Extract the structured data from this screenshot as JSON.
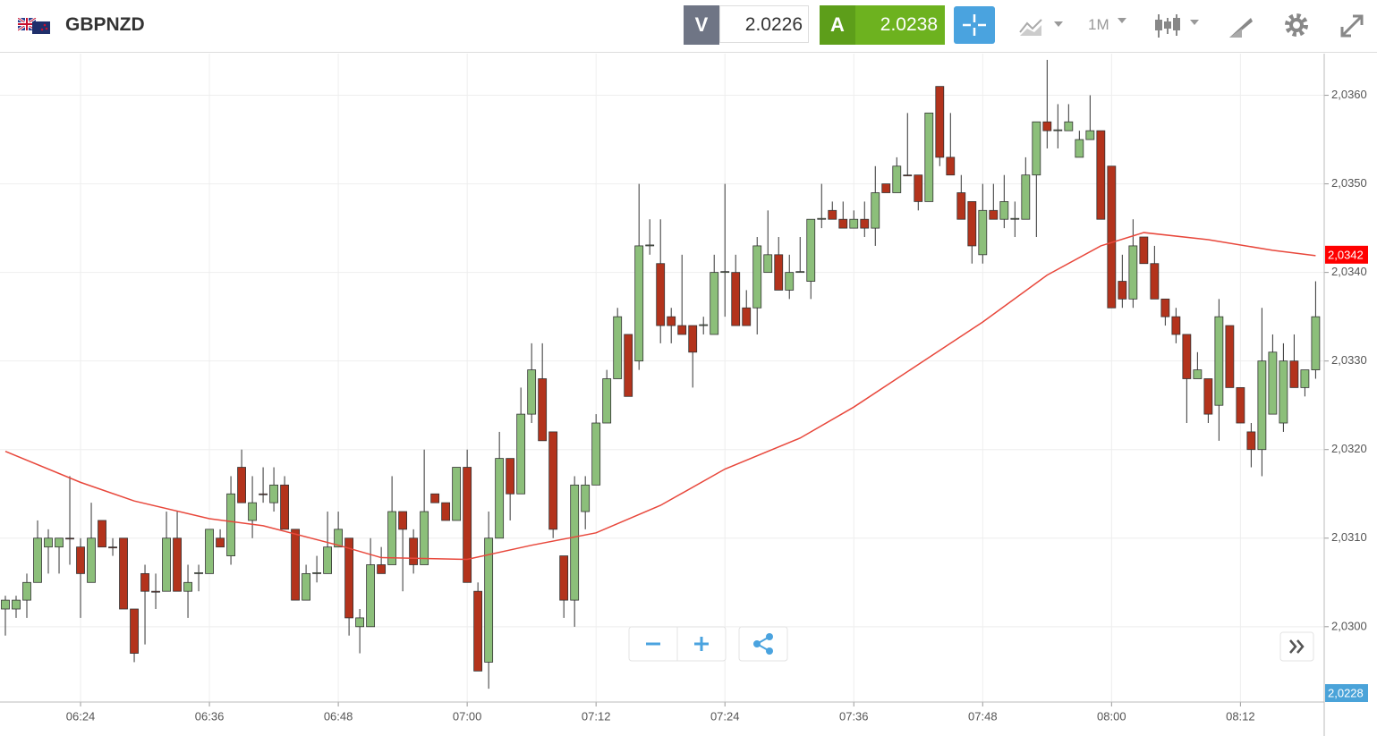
{
  "header": {
    "symbol": "GBPNZD",
    "bid_label": "V",
    "bid": "2.0226",
    "ask_label": "A",
    "ask": "2.0238",
    "timeframe": "1M"
  },
  "chart_data": {
    "type": "candlestick",
    "x": [
      377,
      378,
      379,
      380,
      381,
      382,
      383,
      384,
      385,
      386,
      387,
      388,
      389,
      390,
      391,
      392,
      393,
      394,
      395,
      396,
      397,
      398,
      399,
      400,
      401,
      402,
      403,
      404,
      405,
      406,
      407,
      408,
      409,
      410,
      411,
      412,
      413,
      414,
      415,
      416,
      417,
      418,
      419,
      420,
      421,
      422,
      423,
      424,
      425,
      426,
      427,
      428,
      429,
      430,
      431,
      432,
      433,
      434,
      435,
      436,
      437,
      438,
      439,
      440,
      441,
      442,
      443,
      444,
      445,
      446,
      447,
      448,
      449,
      450,
      451,
      452,
      453,
      454,
      455,
      456,
      457,
      458,
      459,
      460,
      461,
      462,
      463,
      464,
      465,
      466,
      467,
      468,
      469,
      470,
      471,
      472,
      473,
      474,
      475,
      476,
      477,
      478,
      479,
      480,
      481,
      482,
      483,
      484,
      485,
      486,
      487,
      488,
      489,
      490,
      491,
      492,
      493,
      494,
      495,
      496,
      497,
      498,
      499
    ],
    "open": [
      2.0302,
      2.0302,
      2.0303,
      2.0305,
      2.0309,
      2.0309,
      2.031,
      2.0309,
      2.0305,
      2.0312,
      2.0309,
      2.031,
      2.0302,
      2.0306,
      2.0304,
      2.0304,
      2.031,
      2.0304,
      2.0306,
      2.0306,
      2.031,
      2.0308,
      2.0318,
      2.0312,
      2.0315,
      2.0314,
      2.0316,
      2.0311,
      2.0303,
      2.0306,
      2.0306,
      2.0309,
      2.031,
      2.03,
      2.03,
      2.0307,
      2.0307,
      2.0313,
      2.031,
      2.0307,
      2.0315,
      2.0314,
      2.0312,
      2.0318,
      2.0304,
      2.0296,
      2.031,
      2.0319,
      2.0315,
      2.0324,
      2.0328,
      2.0322,
      2.0308,
      2.0303,
      2.0313,
      2.0316,
      2.0323,
      2.0328,
      2.0333,
      2.033,
      2.0343,
      2.0341,
      2.0335,
      2.0334,
      2.0334,
      2.0334,
      2.0333,
      2.034,
      2.034,
      2.0336,
      2.0336,
      2.034,
      2.0342,
      2.0338,
      2.034,
      2.0339,
      2.0346,
      2.0347,
      2.0346,
      2.0345,
      2.0346,
      2.0345,
      2.035,
      2.0349,
      2.0351,
      2.0351,
      2.0348,
      2.0361,
      2.0353,
      2.0349,
      2.0348,
      2.0342,
      2.0347,
      2.0346,
      2.0346,
      2.0346,
      2.0351,
      2.0357,
      2.0356,
      2.0356,
      2.0353,
      2.0355,
      2.0356,
      2.0352,
      2.0339,
      2.0337,
      2.0344,
      2.0341,
      2.0337,
      2.0335,
      2.0333,
      2.0328,
      2.0328,
      2.0325,
      2.0334,
      2.0327,
      2.0322,
      2.032,
      2.0324,
      2.0323,
      2.033,
      2.0327,
      2.0329
    ],
    "high": [
      2.03035,
      2.03035,
      2.0306,
      2.0312,
      2.0311,
      2.031,
      2.0317,
      2.031,
      2.0314,
      2.0312,
      2.031,
      2.031,
      2.0302,
      2.0307,
      2.0306,
      2.0313,
      2.0313,
      2.0307,
      2.0307,
      2.0311,
      2.0311,
      2.0317,
      2.032,
      2.0317,
      2.0318,
      2.0318,
      2.0317,
      2.0311,
      2.0307,
      2.0308,
      2.0313,
      2.0313,
      2.031,
      2.0302,
      2.031,
      2.0309,
      2.0317,
      2.0313,
      2.0311,
      2.032,
      2.0315,
      2.0314,
      2.0318,
      2.032,
      2.0305,
      2.0313,
      2.0322,
      2.0319,
      2.0327,
      2.0332,
      2.0332,
      2.0322,
      2.0308,
      2.0317,
      2.0317,
      2.0324,
      2.0329,
      2.0336,
      2.0333,
      2.035,
      2.0346,
      2.0346,
      2.0336,
      2.0342,
      2.0334,
      2.0335,
      2.0342,
      2.035,
      2.0342,
      2.0338,
      2.0344,
      2.0347,
      2.0344,
      2.0342,
      2.0344,
      2.0346,
      2.035,
      2.0348,
      2.0348,
      2.0347,
      2.0348,
      2.0352,
      2.035,
      2.0353,
      2.0358,
      2.0351,
      2.0358,
      2.0361,
      2.0358,
      2.0351,
      2.0348,
      2.035,
      2.035,
      2.0351,
      2.0348,
      2.0353,
      2.0357,
      2.0364,
      2.0359,
      2.0359,
      2.0356,
      2.036,
      2.0356,
      2.0352,
      2.0342,
      2.0346,
      2.0344,
      2.0343,
      2.0337,
      2.0336,
      2.0333,
      2.0331,
      2.0328,
      2.0337,
      2.0334,
      2.0327,
      2.0323,
      2.0336,
      2.0333,
      2.0332,
      2.0333,
      2.0329,
      2.0339
    ],
    "low": [
      2.0299,
      2.0301,
      2.0301,
      2.0305,
      2.0306,
      2.0306,
      2.0307,
      2.0301,
      2.0305,
      2.0309,
      2.0308,
      2.0302,
      2.0296,
      2.0298,
      2.0302,
      2.0304,
      2.0304,
      2.0301,
      2.0304,
      2.0306,
      2.0309,
      2.0307,
      2.0314,
      2.031,
      2.0314,
      2.0313,
      2.0311,
      2.0303,
      2.0303,
      2.0305,
      2.0306,
      2.0309,
      2.0299,
      2.0297,
      2.03,
      2.0306,
      2.0307,
      2.0304,
      2.0306,
      2.0307,
      2.0314,
      2.0312,
      2.0312,
      2.0305,
      2.0295,
      2.0293,
      2.031,
      2.0312,
      2.0315,
      2.0323,
      2.0321,
      2.031,
      2.0301,
      2.03,
      2.0311,
      2.0316,
      2.0323,
      2.0328,
      2.0326,
      2.0329,
      2.0342,
      2.0332,
      2.0332,
      2.0333,
      2.0327,
      2.0333,
      2.0333,
      2.0335,
      2.0334,
      2.0334,
      2.0333,
      2.034,
      2.0338,
      2.0337,
      2.034,
      2.0337,
      2.0345,
      2.0346,
      2.0345,
      2.0345,
      2.0344,
      2.0343,
      2.0349,
      2.0349,
      2.0351,
      2.0347,
      2.0348,
      2.0352,
      2.0351,
      2.0346,
      2.0341,
      2.0341,
      2.0346,
      2.0345,
      2.0344,
      2.0346,
      2.0344,
      2.0354,
      2.0354,
      2.0356,
      2.0353,
      2.0355,
      2.0346,
      2.0336,
      2.0336,
      2.0336,
      2.0341,
      2.0337,
      2.0334,
      2.0332,
      2.0323,
      2.0328,
      2.0323,
      2.0321,
      2.0327,
      2.0323,
      2.0318,
      2.0317,
      2.0324,
      2.0322,
      2.0327,
      2.0326,
      2.0328
    ],
    "close": [
      2.0303,
      2.0303,
      2.0305,
      2.031,
      2.031,
      2.031,
      2.03099,
      2.0306,
      2.031,
      2.0309,
      2.03089,
      2.0302,
      2.0297,
      2.0304,
      2.03039,
      2.031,
      2.0304,
      2.0305,
      2.03061,
      2.0311,
      2.0309,
      2.0315,
      2.0314,
      2.0314,
      2.03149,
      2.0316,
      2.0311,
      2.0303,
      2.0306,
      2.03061,
      2.0309,
      2.0311,
      2.0301,
      2.0301,
      2.0307,
      2.0306,
      2.0313,
      2.0311,
      2.0307,
      2.0313,
      2.0314,
      2.0312,
      2.0318,
      2.0305,
      2.0295,
      2.031,
      2.0319,
      2.0315,
      2.0324,
      2.0329,
      2.0321,
      2.0311,
      2.0303,
      2.0316,
      2.0316,
      2.0323,
      2.0328,
      2.0335,
      2.0326,
      2.0343,
      2.03431,
      2.0334,
      2.0334,
      2.0333,
      2.0331,
      2.03341,
      2.034,
      2.03401,
      2.0334,
      2.0334,
      2.0343,
      2.0342,
      2.0338,
      2.034,
      2.03401,
      2.0346,
      2.03461,
      2.0346,
      2.0345,
      2.0346,
      2.0345,
      2.0349,
      2.0349,
      2.0352,
      2.03509,
      2.0348,
      2.0358,
      2.0353,
      2.0351,
      2.0346,
      2.0343,
      2.0347,
      2.0346,
      2.0348,
      2.03461,
      2.0351,
      2.0357,
      2.0356,
      2.03561,
      2.0357,
      2.0355,
      2.0356,
      2.0346,
      2.0336,
      2.0337,
      2.0343,
      2.0341,
      2.0337,
      2.0335,
      2.0333,
      2.0328,
      2.0329,
      2.0324,
      2.0335,
      2.0327,
      2.0323,
      2.032,
      2.033,
      2.0331,
      2.033,
      2.0327,
      2.0329,
      2.0335
    ],
    "up_color": "#8cbf7a",
    "down_color": "#b3331c",
    "line": {
      "color": "#e8473b",
      "x": [
        377,
        384,
        389,
        396,
        401,
        408,
        412,
        420,
        426,
        432,
        438,
        444,
        451,
        456,
        462,
        468,
        474,
        479,
        483,
        489,
        495,
        499
      ],
      "values": [
        2.03198,
        2.03163,
        2.03142,
        2.03122,
        2.03114,
        2.03092,
        2.03078,
        2.03076,
        2.03092,
        2.03106,
        2.03137,
        2.03178,
        2.03213,
        2.03248,
        2.03296,
        2.03344,
        2.03397,
        2.0343,
        2.03445,
        2.03437,
        2.03425,
        2.03419
      ]
    },
    "xlim": [
      376.5,
      499.8
    ],
    "xticks": [
      {
        "value": 384,
        "label": "06:24"
      },
      {
        "value": 396,
        "label": "06:36"
      },
      {
        "value": 408,
        "label": "06:48"
      },
      {
        "value": 420,
        "label": "07:00"
      },
      {
        "value": 432,
        "label": "07:12"
      },
      {
        "value": 444,
        "label": "07:24"
      },
      {
        "value": 456,
        "label": "07:36"
      },
      {
        "value": 468,
        "label": "07:48"
      },
      {
        "value": 480,
        "label": "08:00"
      },
      {
        "value": 492,
        "label": "08:12"
      }
    ],
    "ylim": [
      2.02915,
      2.03647
    ],
    "yticks": [
      {
        "value": 2.03,
        "label": "2,0300"
      },
      {
        "value": 2.031,
        "label": "2,0310"
      },
      {
        "value": 2.032,
        "label": "2,0320"
      },
      {
        "value": 2.033,
        "label": "2,0330"
      },
      {
        "value": 2.034,
        "label": "2,0340"
      },
      {
        "value": 2.035,
        "label": "2,0350"
      },
      {
        "value": 2.036,
        "label": "2,0360"
      }
    ],
    "grid": true,
    "price_marker": {
      "value": 2.0342,
      "label": "2,0342",
      "color": "#ff0000"
    },
    "bottom_marker": {
      "label": "2,0228",
      "color": "#4aa3d9"
    }
  }
}
